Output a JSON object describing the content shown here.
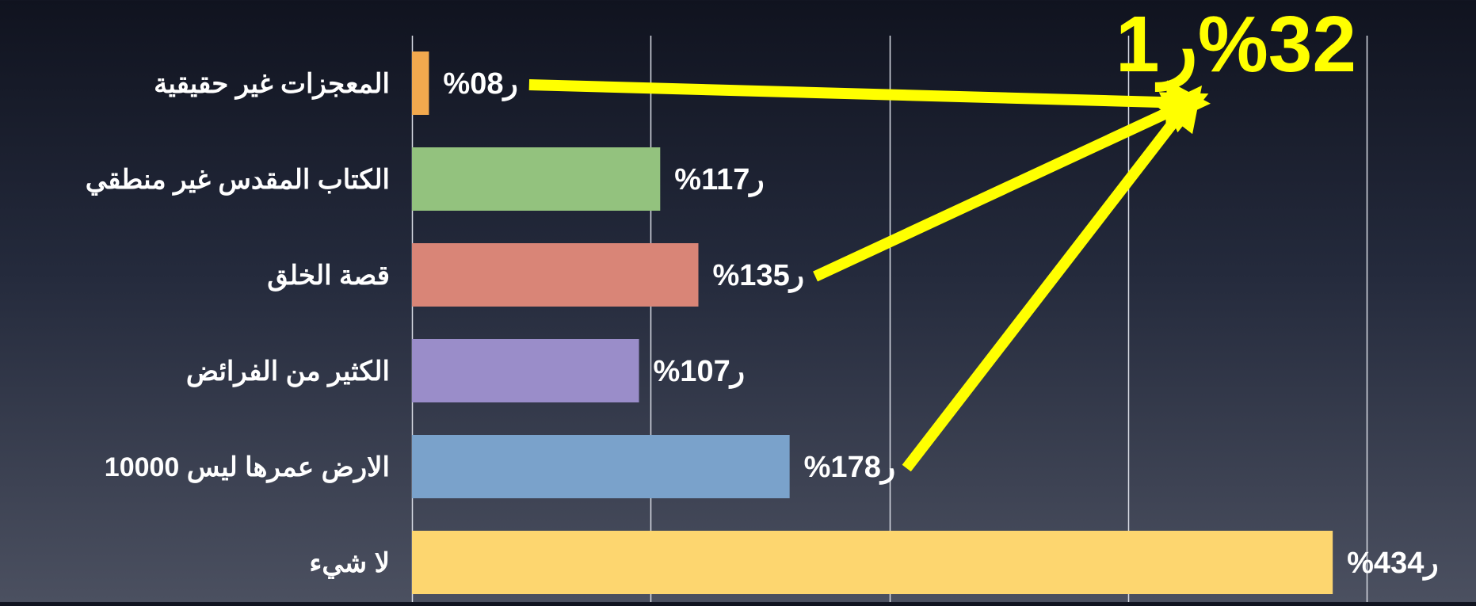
{
  "chart_data": {
    "type": "bar",
    "orientation": "horizontal",
    "grid": true,
    "categories": [
      "المعجزات غير حقيقية",
      "الكتاب المقدس غير منطقي",
      "قصة الخلق",
      "الكثير من الفرائض",
      "الارض عمرها ليس 10000",
      "لا شيء"
    ],
    "values": [
      0.8,
      11.7,
      13.5,
      10.7,
      17.8,
      43.4
    ],
    "data_labels": [
      "%0ر8",
      "%11ر7",
      "%13ر5",
      "%10ر7",
      "%17ر8",
      "%43ر4"
    ],
    "colors": [
      "#f2a94e",
      "#93c27e",
      "#d98577",
      "#9a8dc9",
      "#7aa2cb",
      "#fdd66f"
    ],
    "xlim": [
      0,
      45
    ],
    "grid_step": 11.25,
    "annotation": {
      "text": "%32ر1",
      "color": "#ffff00",
      "arrows_from": [
        0,
        2,
        4
      ]
    }
  }
}
